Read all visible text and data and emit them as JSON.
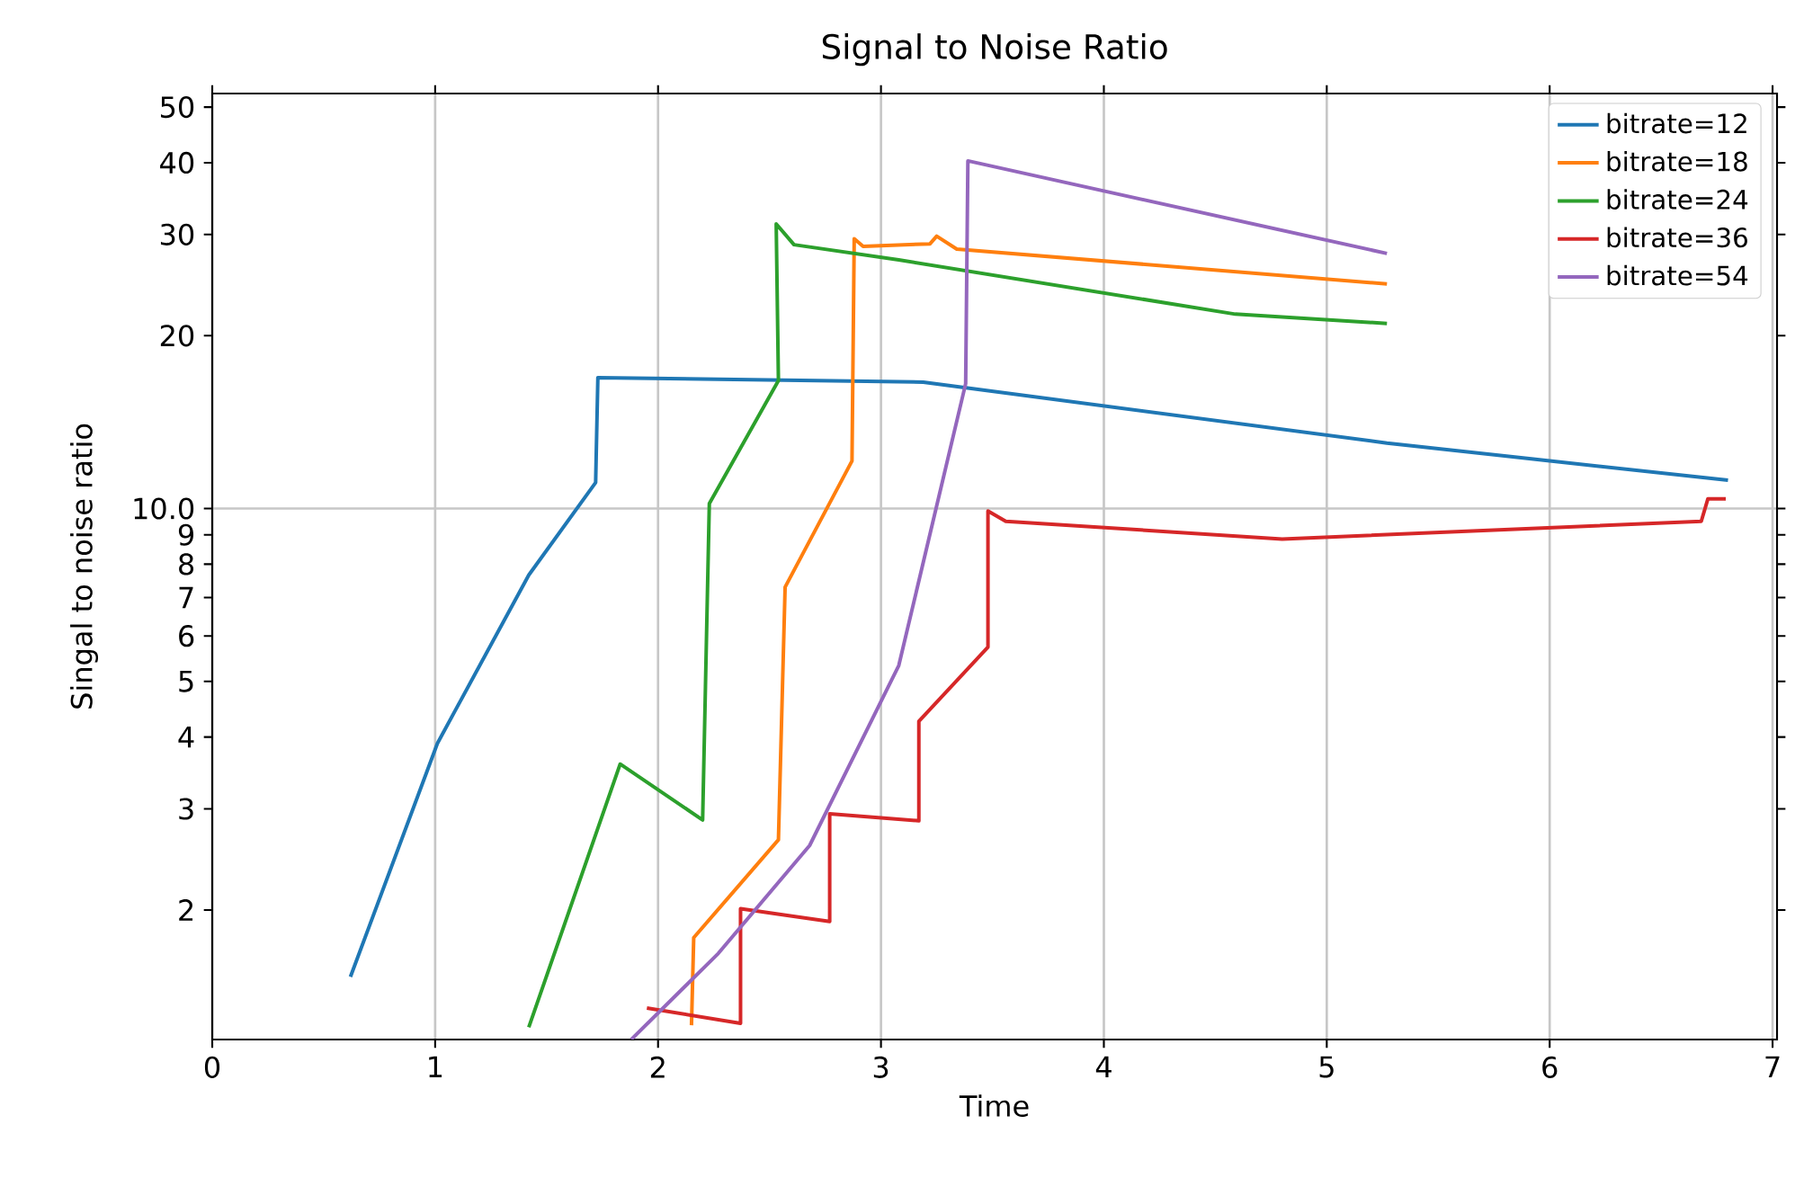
{
  "chart_data": {
    "type": "line",
    "title": "Signal to Noise Ratio",
    "xlabel": "Time",
    "ylabel": "Singal to noise ratio",
    "log": "y",
    "grid": true,
    "legend": "top right",
    "line_style": "solid",
    "marker": "none",
    "xlim": [
      0,
      7.02
    ],
    "ylim": [
      1.19,
      52.8
    ],
    "xticks": [
      0,
      1,
      2,
      3,
      4,
      5,
      6,
      7
    ],
    "yticks": [
      2,
      3,
      4,
      5,
      6,
      7,
      8,
      9,
      {
        "value": 10,
        "label": "10.0"
      },
      20,
      30,
      40,
      50
    ],
    "series": [
      {
        "name": "bitrate=12",
        "color": "#1f77b4",
        "x": [
          0.62,
          1.01,
          1.42,
          1.72,
          1.73,
          3.19,
          5.27,
          6.8
        ],
        "values": [
          1.53,
          3.9,
          7.66,
          11.1,
          16.9,
          16.6,
          13.0,
          11.2
        ]
      },
      {
        "name": "bitrate=18",
        "color": "#ff7f0e",
        "x": [
          2.15,
          2.16,
          2.54,
          2.57,
          2.87,
          2.88,
          2.92,
          3.22,
          3.25,
          3.34,
          5.27
        ],
        "values": [
          1.26,
          1.79,
          2.65,
          7.3,
          12.1,
          29.5,
          28.6,
          28.9,
          29.8,
          28.3,
          24.6
        ]
      },
      {
        "name": "bitrate=24",
        "color": "#2ca02c",
        "x": [
          1.42,
          1.83,
          2.2,
          2.23,
          2.54,
          2.53,
          2.61,
          3.08,
          4.59,
          5.27
        ],
        "values": [
          1.25,
          3.59,
          2.87,
          10.2,
          16.7,
          31.3,
          28.8,
          27.1,
          21.8,
          21.0
        ]
      },
      {
        "name": "bitrate=36",
        "color": "#d62728",
        "x": [
          1.95,
          2.37,
          2.37,
          2.77,
          2.77,
          3.17,
          3.17,
          3.48,
          3.48,
          3.56,
          4.8,
          6.68,
          6.71,
          6.79
        ],
        "values": [
          1.35,
          1.27,
          2.01,
          1.91,
          2.94,
          2.86,
          4.26,
          5.74,
          9.9,
          9.5,
          8.85,
          9.5,
          10.4,
          10.4
        ]
      },
      {
        "name": "bitrate=54",
        "color": "#9467bd",
        "x": [
          1.88,
          2.27,
          2.68,
          3.08,
          3.38,
          3.39,
          5.27
        ],
        "values": [
          1.19,
          1.68,
          2.59,
          5.33,
          16.5,
          40.3,
          27.8
        ]
      }
    ]
  }
}
